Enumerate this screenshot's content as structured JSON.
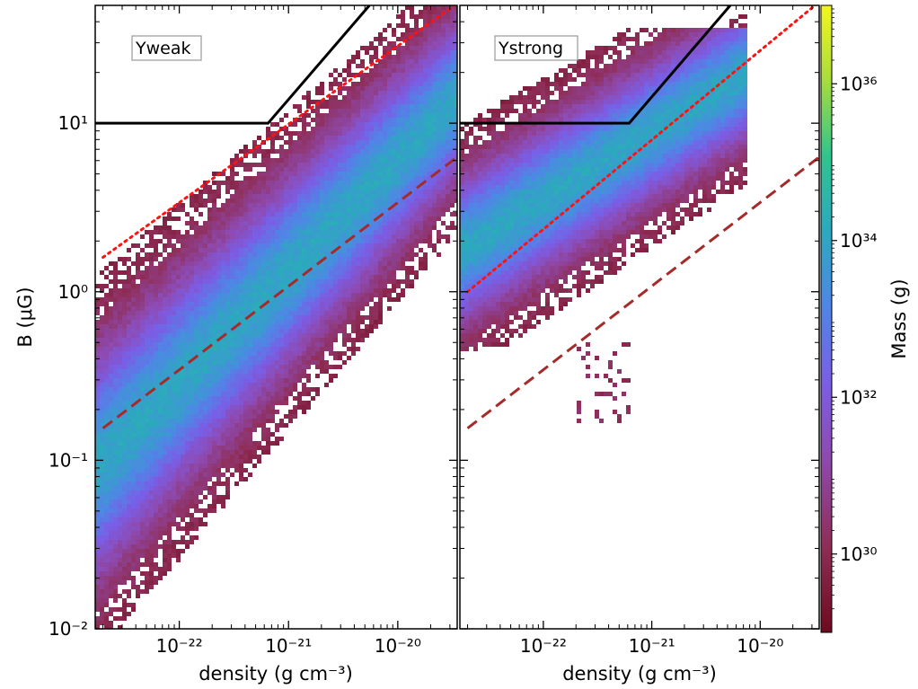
{
  "chart_data": [
    {
      "type": "heatmap",
      "title": "",
      "panel_label": "Yweak",
      "xlabel": "density (g cm⁻³)",
      "ylabel": "B (μG)",
      "xscale": "log",
      "yscale": "log",
      "xlim": [
        1.7e-23,
        3.5e-20
      ],
      "ylim": [
        0.01,
        50
      ],
      "xticks": [
        "10⁻²²",
        "10⁻²¹",
        "10⁻²⁰"
      ],
      "xtick_values": [
        1e-22,
        1e-21,
        1e-20
      ],
      "yticks": [
        "10⁻²",
        "10⁻¹",
        "10⁰",
        "10¹"
      ],
      "ytick_values": [
        0.01,
        0.1,
        1,
        10
      ],
      "lines": [
        {
          "style": "solid",
          "color": "#000000",
          "points": [
            [
              1.7e-23,
              10
            ],
            [
              6.5e-22,
              10
            ],
            [
              5.5e-21,
              50
            ]
          ]
        },
        {
          "style": "dotted",
          "color": "#ff1111",
          "points": [
            [
              2e-23,
              1.6
            ],
            [
              3.3e-20,
              50
            ]
          ]
        },
        {
          "style": "dashed",
          "color": "#a52a2a",
          "points": [
            [
              2e-23,
              0.155
            ],
            [
              3.5e-20,
              6.3
            ]
          ]
        }
      ]
    },
    {
      "type": "heatmap",
      "title": "",
      "panel_label": "Ystrong",
      "xlabel": "density (g cm⁻³)",
      "ylabel": "",
      "xscale": "log",
      "yscale": "log",
      "xlim": [
        1.7e-23,
        3.5e-20
      ],
      "ylim": [
        0.01,
        50
      ],
      "xticks": [
        "10⁻²²",
        "10⁻²¹",
        "10⁻²⁰"
      ],
      "xtick_values": [
        1e-22,
        1e-21,
        1e-20
      ],
      "lines": [
        {
          "style": "solid",
          "color": "#000000",
          "points": [
            [
              1.7e-23,
              10
            ],
            [
              6.2e-22,
              10
            ],
            [
              5.3e-21,
              50
            ]
          ]
        },
        {
          "style": "dotted",
          "color": "#ff1111",
          "points": [
            [
              2e-23,
              1.0
            ],
            [
              3.2e-20,
              50
            ]
          ]
        },
        {
          "style": "dashed",
          "color": "#a52a2a",
          "points": [
            [
              2e-23,
              0.155
            ],
            [
              3.5e-20,
              6.3
            ]
          ]
        }
      ]
    }
  ],
  "colorbar": {
    "label": "Mass  (g)",
    "scale": "log",
    "range": [
      1e+29,
      1e+37
    ],
    "ticks": [
      "10³⁰",
      "10³²",
      "10³⁴",
      "10³⁶"
    ],
    "tick_values": [
      1e+30,
      1e+32,
      1e+34,
      1e+36
    ]
  }
}
